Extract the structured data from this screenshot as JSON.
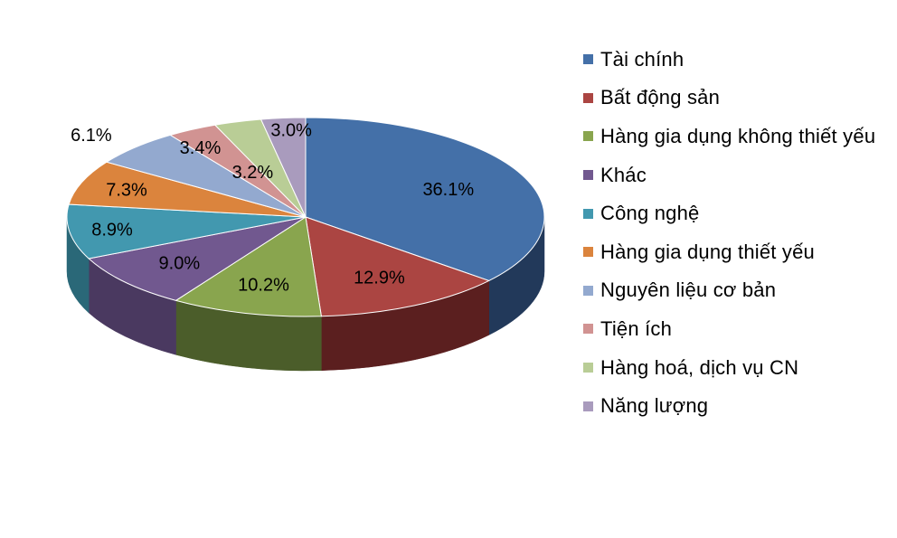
{
  "chart_data": {
    "type": "pie",
    "style": "3d",
    "legend_position": "right",
    "slices": [
      {
        "label": "Tài chính",
        "value": 36.1,
        "display": "36.1%",
        "color": "#4470A8",
        "side_color": "#22395A"
      },
      {
        "label": "Bất động sản",
        "value": 12.9,
        "display": "12.9%",
        "color": "#AB4542",
        "side_color": "#5B1F1F"
      },
      {
        "label": "Hàng gia dụng không thiết yếu",
        "value": 10.2,
        "display": "10.2%",
        "color": "#89A54E",
        "side_color": "#4B5D2A"
      },
      {
        "label": "Khác",
        "value": 9.0,
        "display": "9.0%",
        "color": "#71588F",
        "side_color": "#4A3960"
      },
      {
        "label": "Công nghệ",
        "value": 8.9,
        "display": "8.9%",
        "color": "#4298AF",
        "side_color": "#2A6878"
      },
      {
        "label": "Hàng gia dụng thiết yếu",
        "value": 7.3,
        "display": "7.3%",
        "color": "#DB843D",
        "side_color": "#9A5A27"
      },
      {
        "label": "Nguyên liệu cơ bản",
        "value": 6.1,
        "display": "6.1%",
        "color": "#93A9CF",
        "side_color": "#6A7FA0"
      },
      {
        "label": "Tiện ích",
        "value": 3.4,
        "display": "3.4%",
        "color": "#D19392",
        "side_color": "#A06868"
      },
      {
        "label": "Hàng hoá, dịch vụ CN",
        "value": 3.2,
        "display": "3.2%",
        "color": "#B9CD96",
        "side_color": "#8DA06C"
      },
      {
        "label": "Năng lượng",
        "value": 3.0,
        "display": "3.0%",
        "color": "#A99BBD",
        "side_color": "#7E7194"
      }
    ]
  }
}
